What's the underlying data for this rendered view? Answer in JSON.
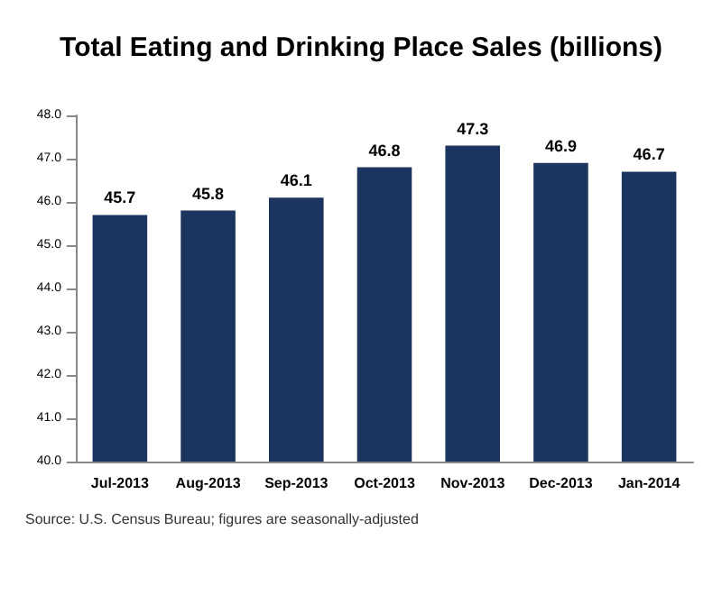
{
  "chart_data": {
    "type": "bar",
    "title": "Total Eating and Drinking Place Sales (billions)",
    "categories": [
      "Jul-2013",
      "Aug-2013",
      "Sep-2013",
      "Oct-2013",
      "Nov-2013",
      "Dec-2013",
      "Jan-2014"
    ],
    "values": [
      45.7,
      45.8,
      46.1,
      46.8,
      47.3,
      46.9,
      46.7
    ],
    "color": "#1c355e",
    "ylim": [
      40,
      48
    ],
    "yticks": [
      {
        "value": 40,
        "label": "40.0"
      },
      {
        "value": 41,
        "label": "41.0"
      },
      {
        "value": 42,
        "label": "42.0"
      },
      {
        "value": 43,
        "label": "43.0"
      },
      {
        "value": 44,
        "label": "44.0"
      },
      {
        "value": 45,
        "label": "45.0"
      },
      {
        "value": 46,
        "label": "46.0"
      },
      {
        "value": 47,
        "label": "47.0"
      },
      {
        "value": 48,
        "label": "48.0"
      }
    ],
    "data_labels": true,
    "grid": false,
    "annotations": [
      "Source: U.S. Census Bureau; figures are seasonally-adjusted"
    ]
  }
}
